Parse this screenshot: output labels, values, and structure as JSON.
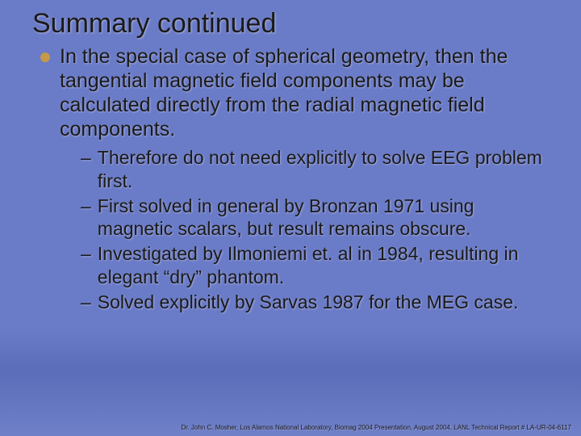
{
  "slide": {
    "background": {
      "gradient_top": "#6a7bc8",
      "gradient_bottom": "#6f80c9",
      "gradient_mid": "#5b6db8"
    },
    "text_color": "#1a1a1a",
    "text_shadow_color": "rgba(200,200,220,0.6)",
    "title": "Summary continued",
    "title_fontsize": 34,
    "bullet": {
      "dot_color": "#c49a4a",
      "text": "In the special case of spherical geometry, then the tangential magnetic field components may be calculated directly from the radial magnetic field components.",
      "fontsize": 25
    },
    "sub_items": [
      "Therefore do not need explicitly to solve EEG problem first.",
      "First solved in general by Bronzan 1971 using magnetic scalars, but result remains obscure.",
      "Investigated by Ilmoniemi et. al in 1984, resulting in elegant “dry” phantom.",
      "Solved explicitly by Sarvas 1987 for the MEG case."
    ],
    "sub_fontsize": 23,
    "footer": "Dr. John C. Mosher, Los Alamos National Laboratory, Biomag 2004 Presentation, August 2004, LANL Technical Report # LA-UR-04-6117",
    "footer_fontsize": 8
  }
}
